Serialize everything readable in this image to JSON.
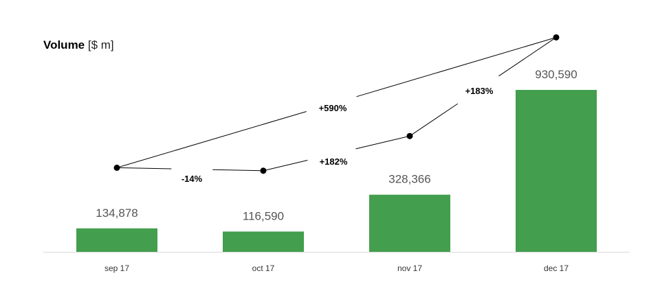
{
  "title": {
    "main": "Volume",
    "unit": "[$ m]"
  },
  "chart_data": {
    "type": "bar",
    "categories": [
      "sep 17",
      "oct 17",
      "nov 17",
      "dec 17"
    ],
    "values": [
      134878,
      116590,
      328366,
      930590
    ],
    "value_labels": [
      "134,878",
      "116,590",
      "328,366",
      "930,590"
    ],
    "title": "Volume",
    "unit": "[$ m]",
    "xlabel": "",
    "ylabel": "",
    "ylim": [
      0,
      1000000
    ],
    "grid": false,
    "bar_color": "#439e4d",
    "changes": [
      {
        "from": "sep 17",
        "to": "oct 17",
        "label": "-14%"
      },
      {
        "from": "oct 17",
        "to": "nov 17",
        "label": "+182%"
      },
      {
        "from": "nov 17",
        "to": "dec 17",
        "label": "+183%"
      },
      {
        "from": "sep 17",
        "to": "dec 17",
        "label": "+590%"
      }
    ]
  }
}
